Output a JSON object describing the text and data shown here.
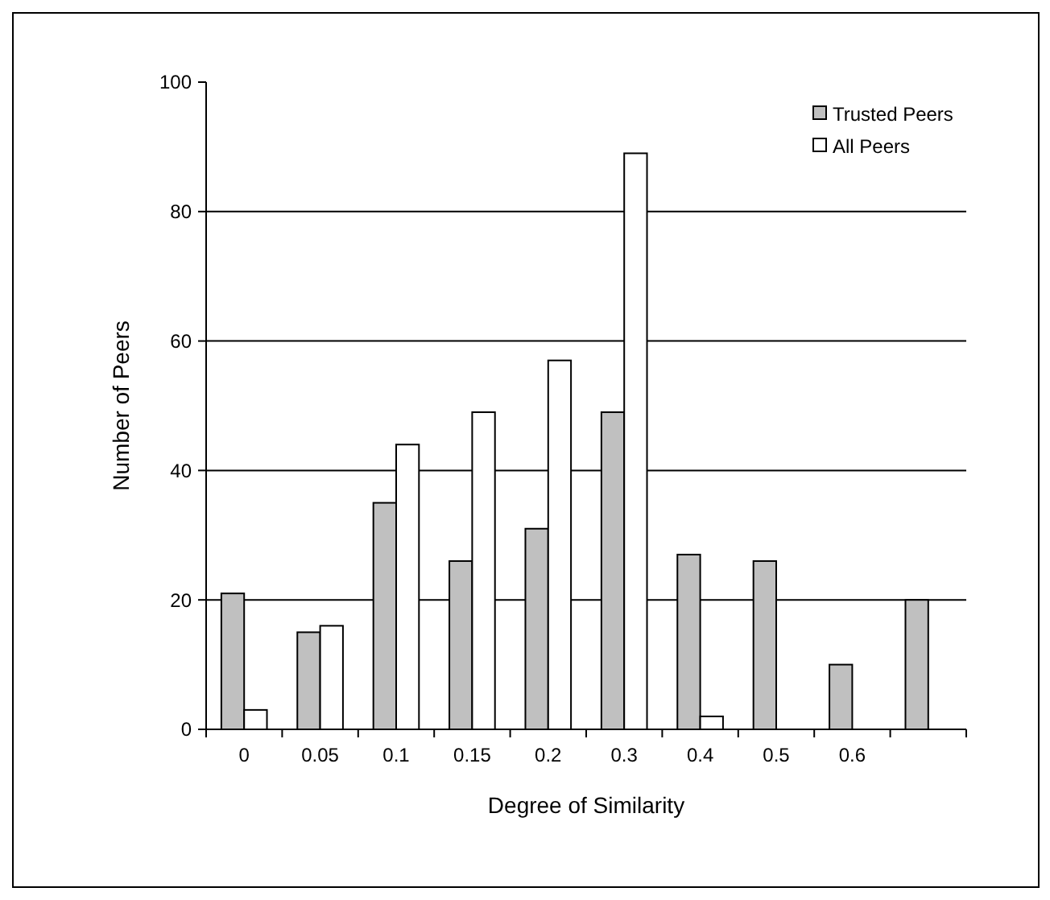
{
  "chart_data": {
    "type": "bar",
    "xlabel": "Degree of Similarity",
    "ylabel": "Number of Peers",
    "categories": [
      "0",
      "0.05",
      "0.1",
      "0.15",
      "0.2",
      "0.3",
      "0.4",
      "0.5",
      "0.6",
      null
    ],
    "series": [
      {
        "name": "Trusted Peers",
        "color": "#c0c0c0",
        "values": [
          21,
          15,
          35,
          26,
          31,
          49,
          27,
          26,
          10,
          20
        ]
      },
      {
        "name": "All Peers",
        "color": "#ffffff",
        "values": [
          3,
          16,
          44,
          49,
          57,
          89,
          2,
          0,
          0,
          0
        ]
      }
    ],
    "ylim": [
      0,
      100
    ],
    "yticks": [
      0,
      20,
      40,
      60,
      80,
      100
    ],
    "grid": "y",
    "legend": "top right"
  }
}
